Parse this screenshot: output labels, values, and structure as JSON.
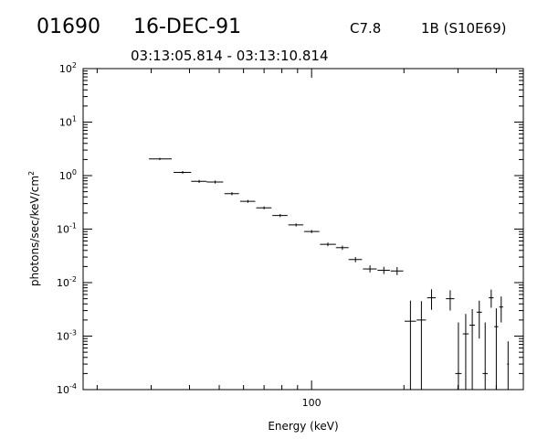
{
  "header": {
    "event_id": "01690",
    "date": "16-DEC-91",
    "goes_class": "C7.8",
    "optical_class": "1B (S10E69)",
    "time_range": "03:13:05.814 - 03:13:10.814"
  },
  "chart_data": {
    "type": "scatter",
    "title": "",
    "xlabel": "Energy (keV)",
    "ylabel_base": "photons/sec/keV/cm",
    "ylabel_sup": "2",
    "xscale": "log",
    "yscale": "log",
    "xlim": [
      18,
      490
    ],
    "ylim": [
      0.0001,
      100
    ],
    "x_tick_labels": [
      "100"
    ],
    "y_tick_labels": [
      {
        "base": "10",
        "exp": "-4"
      },
      {
        "base": "10",
        "exp": "-3"
      },
      {
        "base": "10",
        "exp": "-2"
      },
      {
        "base": "10",
        "exp": "-1"
      },
      {
        "base": "10",
        "exp": "0"
      },
      {
        "base": "10",
        "exp": "1"
      },
      {
        "base": "10",
        "exp": "2"
      }
    ],
    "grid": false,
    "points": [
      {
        "x": 32.0,
        "y": 2.05,
        "xlo": 29.5,
        "xhi": 35.0,
        "ylo": 1.95,
        "yhi": 2.15
      },
      {
        "x": 38.0,
        "y": 1.15,
        "xlo": 35.5,
        "xhi": 40.5,
        "ylo": 1.08,
        "yhi": 1.22
      },
      {
        "x": 43.0,
        "y": 0.78,
        "xlo": 40.5,
        "xhi": 45.5,
        "ylo": 0.73,
        "yhi": 0.83
      },
      {
        "x": 48.5,
        "y": 0.76,
        "xlo": 45.5,
        "xhi": 51.5,
        "ylo": 0.71,
        "yhi": 0.81
      },
      {
        "x": 55.0,
        "y": 0.46,
        "xlo": 52.0,
        "xhi": 58.0,
        "ylo": 0.43,
        "yhi": 0.49
      },
      {
        "x": 62.0,
        "y": 0.33,
        "xlo": 58.5,
        "xhi": 65.5,
        "ylo": 0.31,
        "yhi": 0.35
      },
      {
        "x": 70.0,
        "y": 0.25,
        "xlo": 66.0,
        "xhi": 74.0,
        "ylo": 0.235,
        "yhi": 0.265
      },
      {
        "x": 79.0,
        "y": 0.18,
        "xlo": 74.5,
        "xhi": 83.5,
        "ylo": 0.168,
        "yhi": 0.192
      },
      {
        "x": 89.0,
        "y": 0.12,
        "xlo": 84.0,
        "xhi": 94.0,
        "ylo": 0.112,
        "yhi": 0.128
      },
      {
        "x": 100.0,
        "y": 0.09,
        "xlo": 94.5,
        "xhi": 106.0,
        "ylo": 0.084,
        "yhi": 0.096
      },
      {
        "x": 113.0,
        "y": 0.052,
        "xlo": 106.5,
        "xhi": 120.0,
        "ylo": 0.048,
        "yhi": 0.056
      },
      {
        "x": 126.0,
        "y": 0.045,
        "xlo": 120.0,
        "xhi": 132.0,
        "ylo": 0.041,
        "yhi": 0.049
      },
      {
        "x": 139.0,
        "y": 0.027,
        "xlo": 132.0,
        "xhi": 146.0,
        "ylo": 0.024,
        "yhi": 0.03
      },
      {
        "x": 155.0,
        "y": 0.018,
        "xlo": 147.0,
        "xhi": 163.0,
        "ylo": 0.0155,
        "yhi": 0.021
      },
      {
        "x": 172.0,
        "y": 0.017,
        "xlo": 164.0,
        "xhi": 180.0,
        "ylo": 0.0145,
        "yhi": 0.0198
      },
      {
        "x": 190.0,
        "y": 0.0165,
        "xlo": 181.0,
        "xhi": 199.0,
        "ylo": 0.0138,
        "yhi": 0.0195
      },
      {
        "x": 210.0,
        "y": 0.0019,
        "xlo": 201.0,
        "xhi": 219.0,
        "ylo": 0.0001,
        "yhi": 0.0046
      },
      {
        "x": 228.0,
        "y": 0.002,
        "xlo": 220.0,
        "xhi": 236.0,
        "ylo": 0.0001,
        "yhi": 0.0045
      },
      {
        "x": 246.0,
        "y": 0.0052,
        "xlo": 238.0,
        "xhi": 254.0,
        "ylo": 0.0031,
        "yhi": 0.0075
      },
      {
        "x": 283.0,
        "y": 0.005,
        "xlo": 274.0,
        "xhi": 292.0,
        "ylo": 0.003,
        "yhi": 0.0072
      },
      {
        "x": 301.0,
        "y": 0.0002,
        "xlo": 294.0,
        "xhi": 308.0,
        "ylo": 0.0001,
        "yhi": 0.0018
      },
      {
        "x": 318.0,
        "y": 0.0011,
        "xlo": 311.0,
        "xhi": 325.0,
        "ylo": 0.0001,
        "yhi": 0.0026
      },
      {
        "x": 334.0,
        "y": 0.0016,
        "xlo": 327.0,
        "xhi": 341.0,
        "ylo": 0.0001,
        "yhi": 0.0032
      },
      {
        "x": 352.0,
        "y": 0.0028,
        "xlo": 345.0,
        "xhi": 359.0,
        "ylo": 0.0009,
        "yhi": 0.0046
      },
      {
        "x": 368.0,
        "y": 0.0002,
        "xlo": 361.0,
        "xhi": 375.0,
        "ylo": 0.0001,
        "yhi": 0.0018
      },
      {
        "x": 385.0,
        "y": 0.0052,
        "xlo": 378.0,
        "xhi": 392.0,
        "ylo": 0.0034,
        "yhi": 0.0074
      },
      {
        "x": 400.0,
        "y": 0.0015,
        "xlo": 394.0,
        "xhi": 406.0,
        "ylo": 0.0001,
        "yhi": 0.0033
      },
      {
        "x": 415.0,
        "y": 0.0035,
        "xlo": 409.0,
        "xhi": 421.0,
        "ylo": 0.0018,
        "yhi": 0.0055
      },
      {
        "x": 437.0,
        "y": 0.0003,
        "xlo": 434.0,
        "xhi": 440.0,
        "ylo": 0.0001,
        "yhi": 0.0008
      }
    ]
  }
}
